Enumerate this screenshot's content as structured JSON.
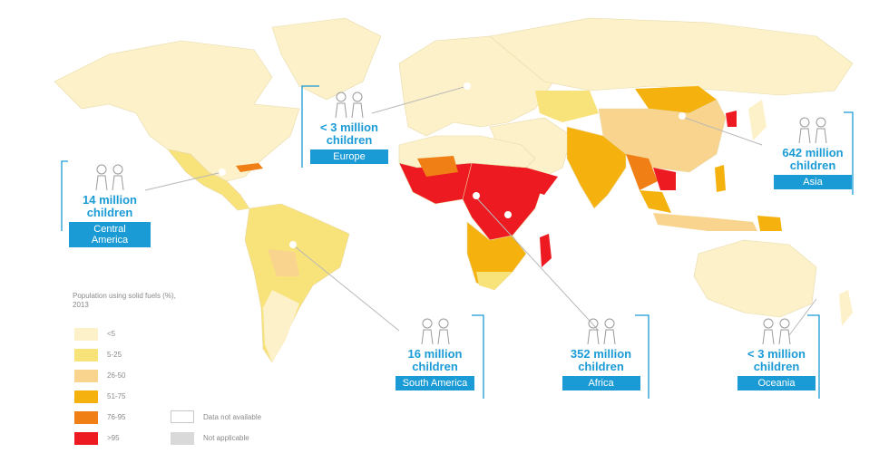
{
  "legend": {
    "title": "Population using solid fuels (%), 2013",
    "items": [
      {
        "label": "<5",
        "color": "#fcf1c9"
      },
      {
        "label": "5-25",
        "color": "#f8e27a"
      },
      {
        "label": "26-50",
        "color": "#f8d48e"
      },
      {
        "label": "51-75",
        "color": "#f5b20e"
      },
      {
        "label": "76-95",
        "color": "#f07f16"
      },
      {
        "label": ">95",
        "color": "#ee1a22"
      }
    ],
    "extra": [
      {
        "label": "Data not available",
        "color": "#ffffff"
      },
      {
        "label": "Not applicable",
        "color": "#d9d9d9"
      }
    ]
  },
  "callouts": [
    {
      "count": "14 million",
      "unit": "children",
      "region": "Central America"
    },
    {
      "count": "< 3 million",
      "unit": "children",
      "region": "Europe"
    },
    {
      "count": "642 million",
      "unit": "children",
      "region": "Asia"
    },
    {
      "count": "16 million",
      "unit": "children",
      "region": "South America"
    },
    {
      "count": "352 million",
      "unit": "children",
      "region": "Africa"
    },
    {
      "count": "< 3 million",
      "unit": "children",
      "region": "Oceania"
    }
  ],
  "colors": {
    "accent": "#1a9bd6",
    "land_light": "#fcf1c9",
    "ocean": "#ffffff"
  }
}
